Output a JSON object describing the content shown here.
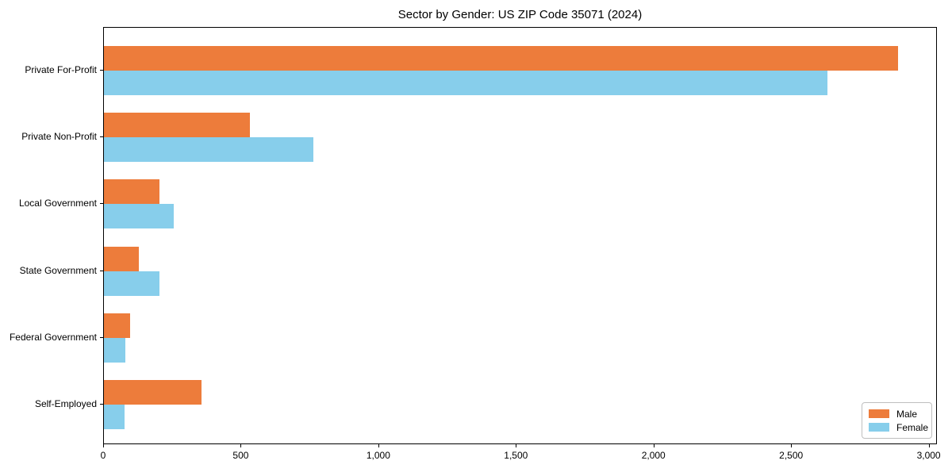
{
  "page": {
    "background": "#ffffff"
  },
  "chart_data": {
    "type": "bar",
    "orientation": "horizontal",
    "title": "Sector by Gender: US ZIP Code 35071 (2024)",
    "categories": [
      "Private For-Profit",
      "Private Non-Profit",
      "Local Government",
      "State Government",
      "Federal Government",
      "Self-Employed"
    ],
    "series": [
      {
        "name": "Male",
        "color": "#ED7C3B",
        "values": [
          2885,
          530,
          202,
          128,
          96,
          355
        ]
      },
      {
        "name": "Female",
        "color": "#87CEEB",
        "values": [
          2630,
          762,
          253,
          203,
          79,
          74
        ]
      }
    ],
    "xlim": [
      0,
      3030
    ],
    "xticks": [
      0,
      500,
      1000,
      1500,
      2000,
      2500,
      3000
    ],
    "xtick_labels": [
      "0",
      "500",
      "1,000",
      "1,500",
      "2,000",
      "2,500",
      "3,000"
    ],
    "xlabel": "",
    "ylabel": "",
    "grid": false,
    "legend": {
      "position": "lower right",
      "entries": [
        "Male",
        "Female"
      ]
    }
  }
}
